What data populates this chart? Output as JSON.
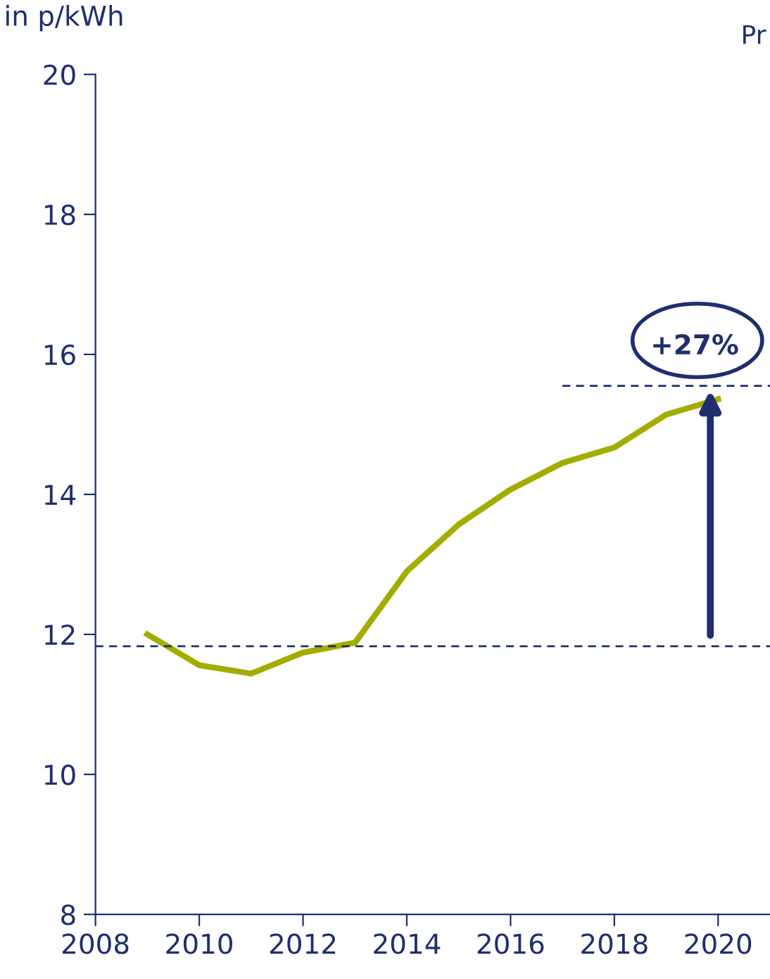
{
  "chart_data": {
    "type": "line",
    "ylabel": "in p/kWh",
    "x": [
      2009,
      2010,
      2011,
      2012,
      2013,
      2014,
      2015,
      2016,
      2017,
      2018,
      2019,
      2020
    ],
    "series": [
      {
        "color": "#a3ad00",
        "values": [
          12.0,
          11.56,
          11.44,
          11.74,
          11.88,
          12.9,
          13.57,
          14.07,
          14.45,
          14.67,
          15.14,
          15.36
        ]
      },
      {
        "type": "line",
        "color": "#1f2f6e",
        "line_style": "dashed",
        "x": [
          2017,
          2021
        ],
        "values": [
          15.55,
          15.55
        ]
      }
    ],
    "xlim": [
      2008,
      2021
    ],
    "xticks": [
      2008,
      2010,
      2012,
      2014,
      2016,
      2018,
      2020
    ],
    "ylim": [
      8,
      20
    ],
    "yticks": [
      8,
      10,
      12,
      14,
      16,
      18,
      20
    ],
    "ref_lines": [
      {
        "axis": "y",
        "value": 11.83,
        "color": "#1f2f6e",
        "line_style": "dashed"
      }
    ],
    "annotations": [
      {
        "text": "+27%",
        "x": 2019.85,
        "y": 15.55
      },
      "Pr"
    ],
    "grid": false,
    "legend": false,
    "marker": "none"
  }
}
